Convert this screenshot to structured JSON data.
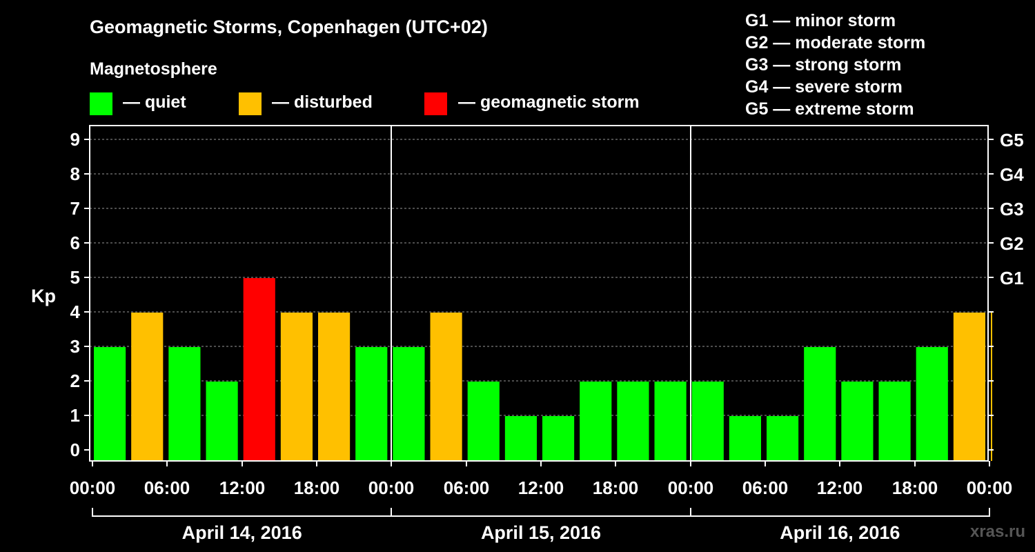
{
  "header": {
    "title": "Geomagnetic Storms, Copenhagen (UTC+02)",
    "magnetosphere_label": "Magnetosphere"
  },
  "legend": [
    {
      "label": "— quiet",
      "color": "#00ff00"
    },
    {
      "label": "— disturbed",
      "color": "#ffc000"
    },
    {
      "label": "— geomagnetic storm",
      "color": "#ff0000"
    }
  ],
  "storm_scale": [
    "G1 — minor storm",
    "G2 — moderate storm",
    "G3 — strong storm",
    "G4 — severe storm",
    "G5 — extreme storm"
  ],
  "watermark": "xras.ru",
  "chart_data": {
    "type": "bar",
    "ylabel": "Kp",
    "ylim": [
      0,
      9
    ],
    "yticks": [
      "0",
      "1",
      "2",
      "3",
      "4",
      "5",
      "6",
      "7",
      "8",
      "9"
    ],
    "right_axis_labels": [
      {
        "y": 5,
        "label": "G1"
      },
      {
        "y": 6,
        "label": "G2"
      },
      {
        "y": 7,
        "label": "G3"
      },
      {
        "y": 8,
        "label": "G4"
      },
      {
        "y": 9,
        "label": "G5"
      }
    ],
    "xtick_labels": [
      "00:00",
      "06:00",
      "12:00",
      "18:00",
      "00:00",
      "06:00",
      "12:00",
      "18:00",
      "00:00",
      "06:00",
      "12:00",
      "18:00",
      "00:00"
    ],
    "days": [
      "April 14, 2016",
      "April 15, 2016",
      "April 16, 2016"
    ],
    "interval_hours": 3,
    "values": [
      3,
      4,
      3,
      2,
      5,
      4,
      4,
      3,
      3,
      4,
      2,
      1,
      1,
      2,
      2,
      2,
      2,
      1,
      1,
      3,
      2,
      2,
      3,
      4,
      4
    ],
    "level_colors": {
      "quiet": "#00ff00",
      "disturbed": "#ffc000",
      "storm": "#ff0000"
    },
    "grid": true
  }
}
